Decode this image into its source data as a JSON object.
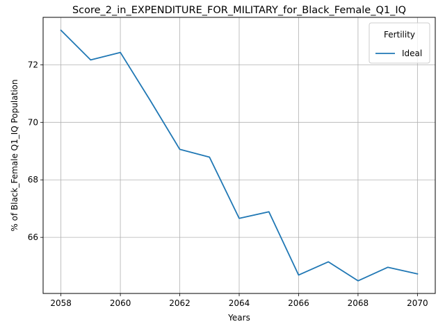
{
  "chart_data": {
    "type": "line",
    "title": "Score_2_in_EXPENDITURE_FOR_MILITARY_for_Black_Female_Q1_IQ",
    "xlabel": "Years",
    "ylabel": "% of Black_Female Q1_IQ Population",
    "x": [
      2058,
      2059,
      2060,
      2061,
      2062,
      2063,
      2064,
      2065,
      2066,
      2067,
      2068,
      2069,
      2070
    ],
    "xticks": [
      2058,
      2060,
      2062,
      2064,
      2066,
      2068,
      2070
    ],
    "yticks": [
      66,
      68,
      70,
      72
    ],
    "xlim": [
      2057.4,
      2070.6
    ],
    "ylim": [
      64.05,
      73.65
    ],
    "grid": true,
    "legend": {
      "title": "Fertility",
      "placement": "top-right"
    },
    "series": [
      {
        "name": "Ideal",
        "color": "#1f77b4",
        "values": [
          73.2,
          72.17,
          72.43,
          70.77,
          69.06,
          68.79,
          66.66,
          66.89,
          64.69,
          65.15,
          64.49,
          64.96,
          64.73
        ]
      }
    ]
  }
}
